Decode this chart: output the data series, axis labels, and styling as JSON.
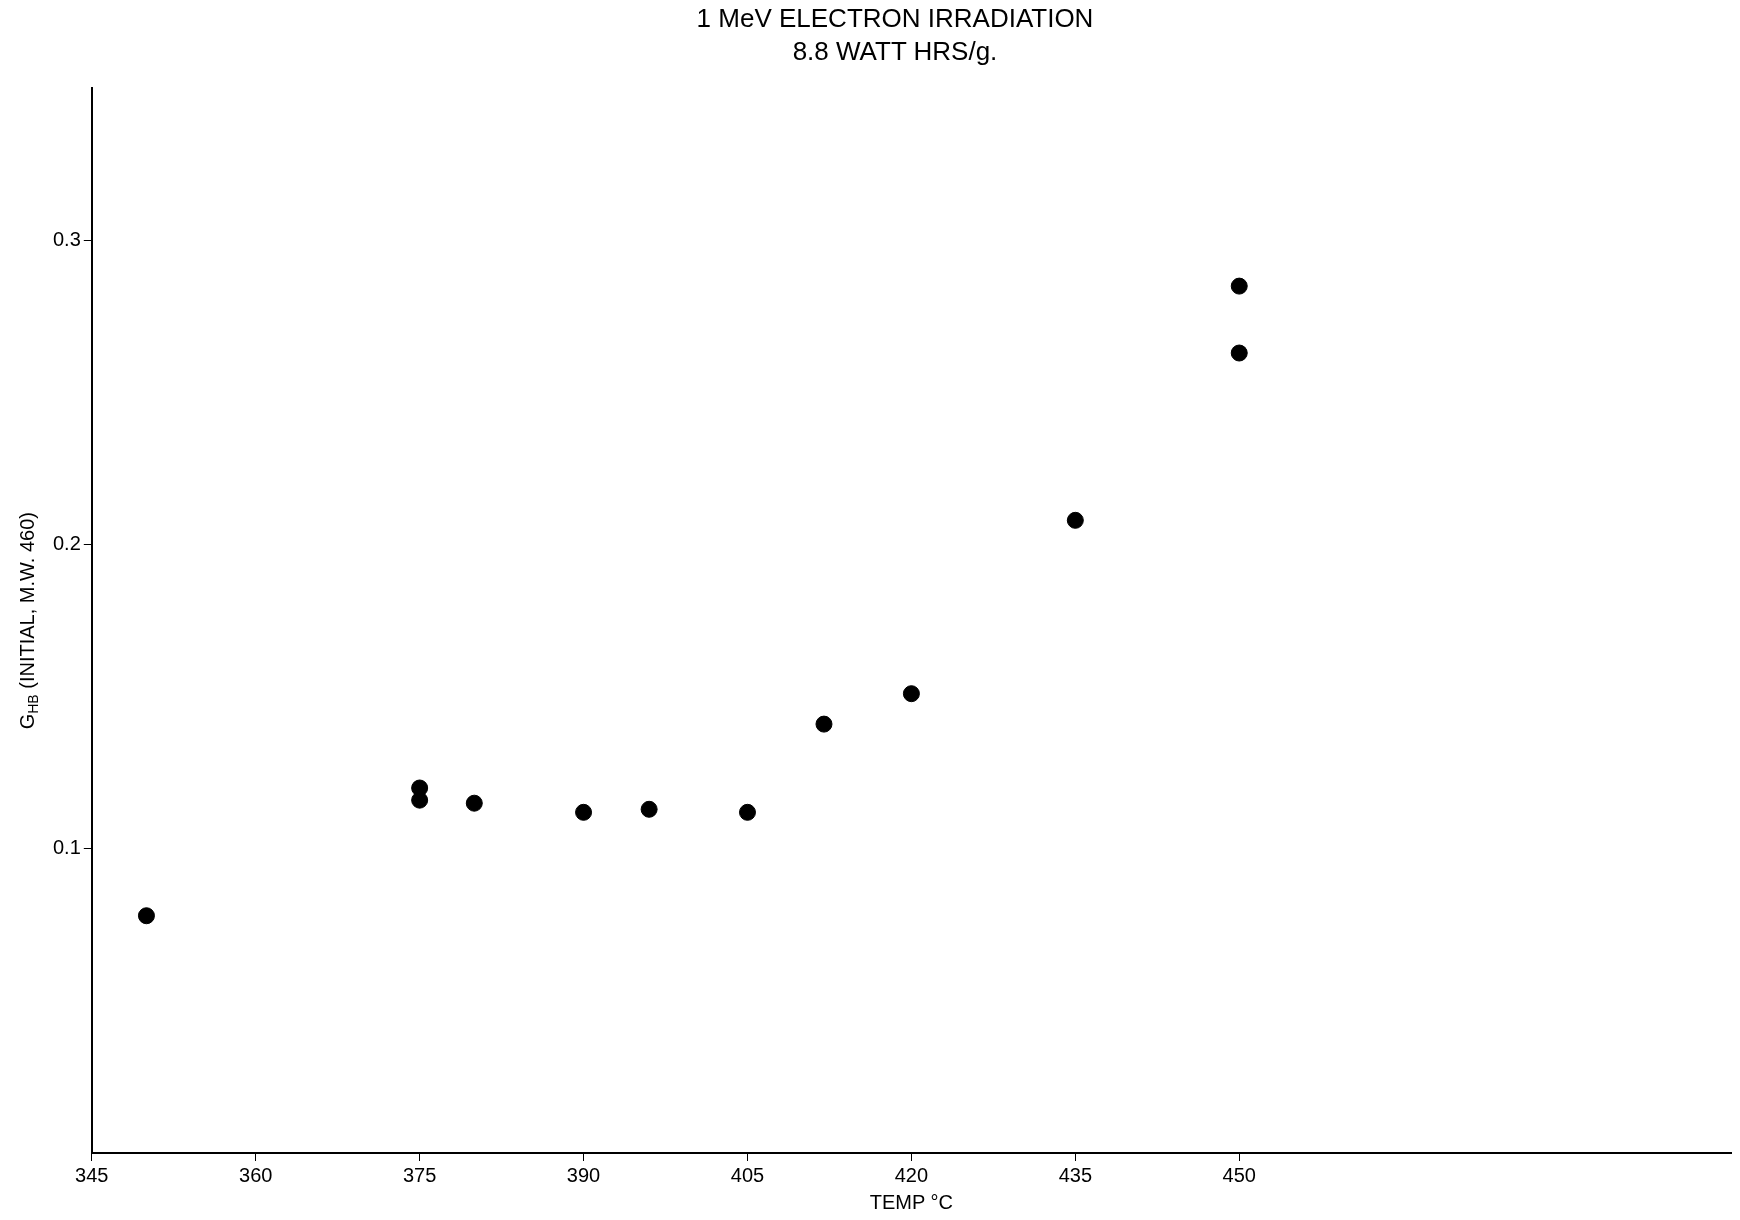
{
  "chart_data": {
    "type": "scatter",
    "title": "1 MeV ELECTRON IRRADIATION",
    "subtitle": "8.8 WATT HRS/g.",
    "xlabel": "TEMP °C",
    "ylabel": "G$_{HB}$ (INITIAL, M.W. 460)",
    "x": [
      350,
      375,
      375,
      380,
      390,
      396,
      405,
      412,
      420,
      435,
      450,
      450
    ],
    "series": [
      {
        "color": "#000000",
        "values": [
          0.078,
          0.12,
          0.116,
          0.115,
          0.112,
          0.113,
          0.112,
          0.141,
          0.151,
          0.208,
          0.285,
          0.263
        ]
      }
    ],
    "xlim": [
      345,
      495
    ],
    "xticks": [
      345,
      360,
      375,
      390,
      405,
      420,
      435,
      450
    ],
    "ylim": [
      0,
      0.35
    ],
    "yticks": [
      0.1,
      0.2,
      0.3
    ],
    "marker": "circle",
    "grid": false,
    "legend": false
  }
}
